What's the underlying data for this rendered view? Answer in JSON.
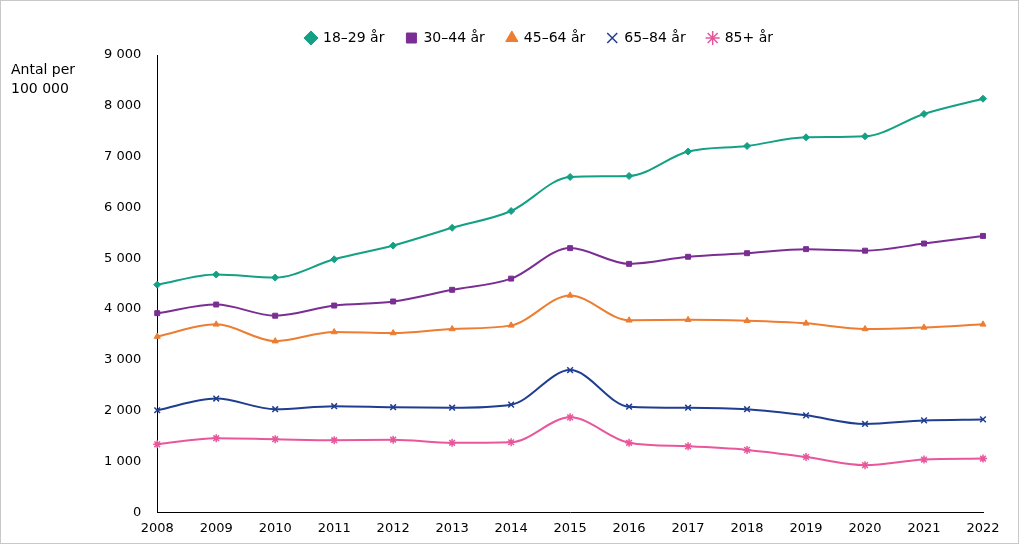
{
  "chart_data": {
    "type": "line",
    "ylabel": [
      "Antal per",
      "100 000"
    ],
    "categories": [
      "2008",
      "2009",
      "2010",
      "2011",
      "2012",
      "2013",
      "2014",
      "2015",
      "2016",
      "2017",
      "2018",
      "2019",
      "2020",
      "2021",
      "2022"
    ],
    "series": [
      {
        "name": "18–29 år",
        "color": "#14a085",
        "marker": "diamond",
        "values": [
          4480,
          4680,
          4620,
          4980,
          5250,
          5600,
          5930,
          6600,
          6620,
          7100,
          7210,
          7380,
          7400,
          7840,
          8140
        ]
      },
      {
        "name": "30–44 år",
        "color": "#7a2e93",
        "marker": "square",
        "values": [
          3920,
          4090,
          3870,
          4070,
          4150,
          4380,
          4600,
          5200,
          4890,
          5030,
          5100,
          5180,
          5150,
          5290,
          5440
        ]
      },
      {
        "name": "45–64 år",
        "color": "#ed7d31",
        "marker": "triangle",
        "values": [
          3460,
          3700,
          3370,
          3550,
          3530,
          3610,
          3680,
          4270,
          3780,
          3790,
          3770,
          3720,
          3610,
          3640,
          3700
        ]
      },
      {
        "name": "65–84 år",
        "color": "#203e8f",
        "marker": "x",
        "values": [
          2010,
          2240,
          2030,
          2090,
          2070,
          2060,
          2120,
          2800,
          2080,
          2060,
          2030,
          1910,
          1740,
          1810,
          1830
        ]
      },
      {
        "name": "85+ år",
        "color": "#e8579c",
        "marker": "star",
        "values": [
          1340,
          1460,
          1440,
          1420,
          1430,
          1370,
          1380,
          1870,
          1370,
          1300,
          1230,
          1090,
          930,
          1040,
          1060
        ]
      }
    ],
    "ylim": [
      0,
      9000
    ],
    "yticks": [
      0,
      {
        "value": 1000,
        "label": "1 000"
      },
      {
        "value": 2000,
        "label": "2 000"
      },
      {
        "value": 3000,
        "label": "3 000"
      },
      {
        "value": 4000,
        "label": "4 000"
      },
      {
        "value": 5000,
        "label": "5 000"
      },
      {
        "value": 6000,
        "label": "6 000"
      },
      {
        "value": 7000,
        "label": "7 000"
      },
      {
        "value": 8000,
        "label": "8 000"
      },
      {
        "value": 9000,
        "label": "9 000"
      }
    ],
    "grid": false,
    "legend": "top"
  }
}
